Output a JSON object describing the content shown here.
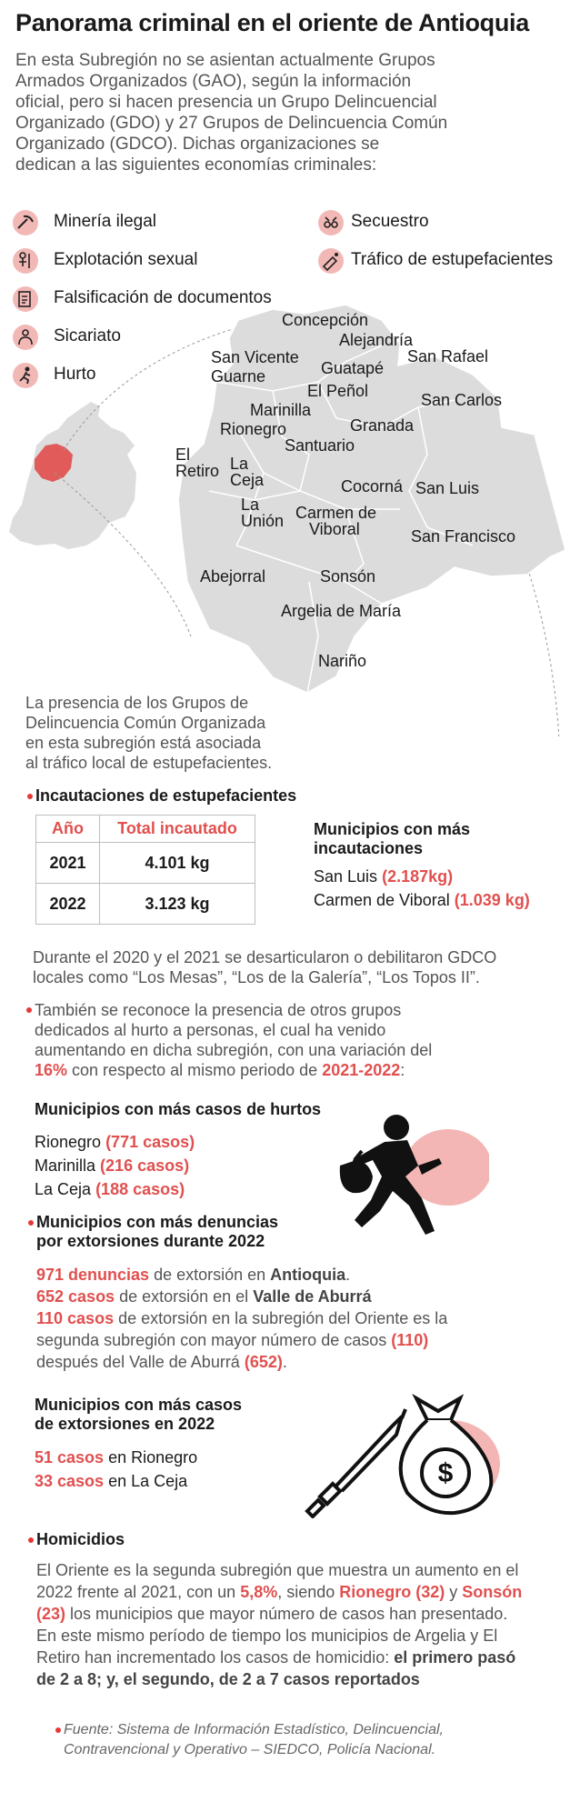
{
  "header": {
    "title": "Panorama criminal en el oriente de Antioquia",
    "intro_lines": [
      "En esta Subregión no se asientan actualmente Grupos",
      "Armados Organizados (GAO), según la información",
      "oficial, pero si hacen presencia un  Grupo Delincuencial",
      "Organizado (GDO) y 27 Grupos de Delincuencia Común",
      "Organizado (GDCO). Dichas organizaciones se",
      "dedican a las siguientes economías criminales:"
    ]
  },
  "economies": [
    {
      "label": "Minería ilegal",
      "icon": "mining-icon"
    },
    {
      "label": "Explotación sexual",
      "icon": "sexual-exploitation-icon"
    },
    {
      "label": "Falsificación de documentos",
      "icon": "document-forgery-icon"
    },
    {
      "label": "Sicariato",
      "icon": "hitman-icon"
    },
    {
      "label": "Hurto",
      "icon": "theft-icon"
    },
    {
      "label": "Secuestro",
      "icon": "kidnapping-icon"
    },
    {
      "label": "Tráfico de estupefacientes",
      "icon": "drug-trafficking-icon"
    }
  ],
  "map": {
    "municipalities": [
      "Concepción",
      "Alejandría",
      "San Vicente",
      "San Rafael",
      "Guatapé",
      "Guarne",
      "El Peñol",
      "San Carlos",
      "Marinilla",
      "Rionegro",
      "Granada",
      "Santuario",
      "El",
      "Retiro",
      "La",
      "Ceja",
      "Cocorná",
      "San Luis",
      "La",
      "Unión",
      "Carmen de",
      "Viboral",
      "San Francisco",
      "Abejorral",
      "Sonsón",
      "Argelia de María",
      "Nariño"
    ],
    "colors": {
      "region": "#dcdcdc",
      "highlight": "#e25b5b",
      "colombia": "#dddddd"
    }
  },
  "gdco_note": [
    "La presencia de los Grupos de",
    "Delincuencia Común Organizada",
    "en esta subregión está asociada",
    "al tráfico local de estupefacientes."
  ],
  "seizures": {
    "heading": "Incautaciones de estupefacientes",
    "col_year": "Año",
    "col_total": "Total incautado",
    "rows": [
      {
        "year": "2021",
        "total": "4.101 kg"
      },
      {
        "year": "2022",
        "total": "3.123 kg"
      }
    ],
    "top_heading_1": "Municipios con más",
    "top_heading_2": "incautaciones",
    "top": [
      {
        "name": "San Luis",
        "value": "(2.187kg)"
      },
      {
        "name": "Carmen de Viboral",
        "value": "(1.039 kg)"
      }
    ]
  },
  "dismantled": [
    "Durante el 2020 y el 2021 se desarticularon o debilitaron GDCO",
    "locales como “Los Mesas”, “Los de la Galería”, “Los Topos II”."
  ],
  "theft": {
    "lines": [
      "También se reconoce la presencia de otros grupos",
      "dedicados al hurto a personas, el cual ha venido",
      "aumentando en dicha subregión, con una variación del"
    ],
    "pct": "16%",
    "mid": " con respecto al mismo periodo de ",
    "period": "2021-2022",
    "end": ":",
    "heading": "Municipios con más casos de hurtos",
    "top": [
      {
        "name": "Rionegro",
        "value": "(771 casos)"
      },
      {
        "name": "Marinilla",
        "value": "(216 casos)"
      },
      {
        "name": "La Ceja",
        "value": "(188 casos)"
      }
    ]
  },
  "extortion_reports": {
    "heading_1": "Municipios con más denuncias",
    "heading_2": "por extorsiones durante 2022",
    "l1_red": "971 denuncias",
    "l1_text": " de extorsión en ",
    "l1_bold": "Antioquia",
    "l1_end": ".",
    "l2_red": "652 casos",
    "l2_text": " de extorsión en el ",
    "l2_bold": "Valle de Aburrá",
    "l3_red": "110 casos",
    "l3_text": " de extorsión en la subregión del Oriente es la",
    "l4_text": "segunda subregión con mayor número de casos ",
    "l4_red": "(110)",
    "l5_text": "después del Valle de Aburrá ",
    "l5_red": "(652)",
    "l5_end": "."
  },
  "extortion_cases": {
    "heading_1": "Municipios con más casos",
    "heading_2": "de extorsiones en 2022",
    "top": [
      {
        "value": "51 casos",
        "name": " en Rionegro"
      },
      {
        "value": "33 casos",
        "name": " en La Ceja"
      }
    ]
  },
  "homicides": {
    "heading": "Homicidios",
    "l1": "El Oriente es la segunda subregión que muestra un aumento en el",
    "l2_a": "2022 frente al 2021, con un ",
    "l2_pct": "5,8%",
    "l2_b": ", siendo ",
    "l2_r1": "Rionegro (32)",
    "l2_c": " y ",
    "l2_r2": "Sonsón",
    "l3_r": "(23)",
    "l3_b": " los municipios que mayor número de casos han presentado.",
    "l4": "En este mismo período de tiempo los municipios de Argelia y El",
    "l5_a": "Retiro han incrementado los casos de homicidio: ",
    "l5_b": "el primero pasó",
    "l6_b": "de 2 a 8; y, el segundo, de 2 a 7 casos reportados"
  },
  "source": {
    "line1": "Fuente: Sistema de Información Estadístico, Delincuencial,",
    "line2": "Contravencional y Operativo – SIEDCO, Policía Nacional."
  }
}
